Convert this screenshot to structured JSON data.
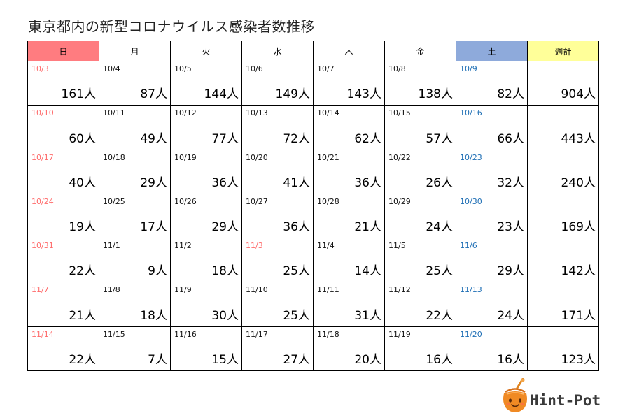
{
  "title": "東京都内の新型コロナウイルス感染者数推移",
  "unit": "人",
  "headers": [
    "日",
    "月",
    "火",
    "水",
    "木",
    "金",
    "土",
    "週計"
  ],
  "colors": {
    "sunday_header": "#ff7c80",
    "saturday_header": "#8eaadb",
    "total_header": "#ffff99",
    "sunday_date": "#ff6b6b",
    "saturday_date": "#1f6fb5"
  },
  "weeks": [
    {
      "days": [
        {
          "date": "10/3",
          "count": "161人"
        },
        {
          "date": "10/4",
          "count": "87人"
        },
        {
          "date": "10/5",
          "count": "144人"
        },
        {
          "date": "10/6",
          "count": "149人"
        },
        {
          "date": "10/7",
          "count": "143人"
        },
        {
          "date": "10/8",
          "count": "138人"
        },
        {
          "date": "10/9",
          "count": "82人"
        }
      ],
      "total": "904人"
    },
    {
      "days": [
        {
          "date": "10/10",
          "count": "60人"
        },
        {
          "date": "10/11",
          "count": "49人"
        },
        {
          "date": "10/12",
          "count": "77人"
        },
        {
          "date": "10/13",
          "count": "72人"
        },
        {
          "date": "10/14",
          "count": "62人"
        },
        {
          "date": "10/15",
          "count": "57人"
        },
        {
          "date": "10/16",
          "count": "66人"
        }
      ],
      "total": "443人"
    },
    {
      "days": [
        {
          "date": "10/17",
          "count": "40人"
        },
        {
          "date": "10/18",
          "count": "29人"
        },
        {
          "date": "10/19",
          "count": "36人"
        },
        {
          "date": "10/20",
          "count": "41人"
        },
        {
          "date": "10/21",
          "count": "36人"
        },
        {
          "date": "10/22",
          "count": "26人"
        },
        {
          "date": "10/23",
          "count": "32人"
        }
      ],
      "total": "240人"
    },
    {
      "days": [
        {
          "date": "10/24",
          "count": "19人"
        },
        {
          "date": "10/25",
          "count": "17人"
        },
        {
          "date": "10/26",
          "count": "29人"
        },
        {
          "date": "10/27",
          "count": "36人"
        },
        {
          "date": "10/28",
          "count": "21人"
        },
        {
          "date": "10/29",
          "count": "24人"
        },
        {
          "date": "10/30",
          "count": "23人"
        }
      ],
      "total": "169人"
    },
    {
      "days": [
        {
          "date": "10/31",
          "count": "22人"
        },
        {
          "date": "11/1",
          "count": "9人"
        },
        {
          "date": "11/2",
          "count": "18人"
        },
        {
          "date": "11/3",
          "count": "25人",
          "holiday": true
        },
        {
          "date": "11/4",
          "count": "14人"
        },
        {
          "date": "11/5",
          "count": "25人"
        },
        {
          "date": "11/6",
          "count": "29人"
        }
      ],
      "total": "142人"
    },
    {
      "days": [
        {
          "date": "11/7",
          "count": "21人"
        },
        {
          "date": "11/8",
          "count": "18人"
        },
        {
          "date": "11/9",
          "count": "30人"
        },
        {
          "date": "11/10",
          "count": "25人"
        },
        {
          "date": "11/11",
          "count": "31人"
        },
        {
          "date": "11/12",
          "count": "22人"
        },
        {
          "date": "11/13",
          "count": "24人"
        }
      ],
      "total": "171人"
    },
    {
      "days": [
        {
          "date": "11/14",
          "count": "22人"
        },
        {
          "date": "11/15",
          "count": "7人"
        },
        {
          "date": "11/16",
          "count": "15人"
        },
        {
          "date": "11/17",
          "count": "27人"
        },
        {
          "date": "11/18",
          "count": "20人"
        },
        {
          "date": "11/19",
          "count": "16人"
        },
        {
          "date": "11/20",
          "count": "16人"
        }
      ],
      "total": "123人"
    }
  ],
  "logo": {
    "text": "Hint-Pot",
    "icon": "pot-face-icon"
  }
}
